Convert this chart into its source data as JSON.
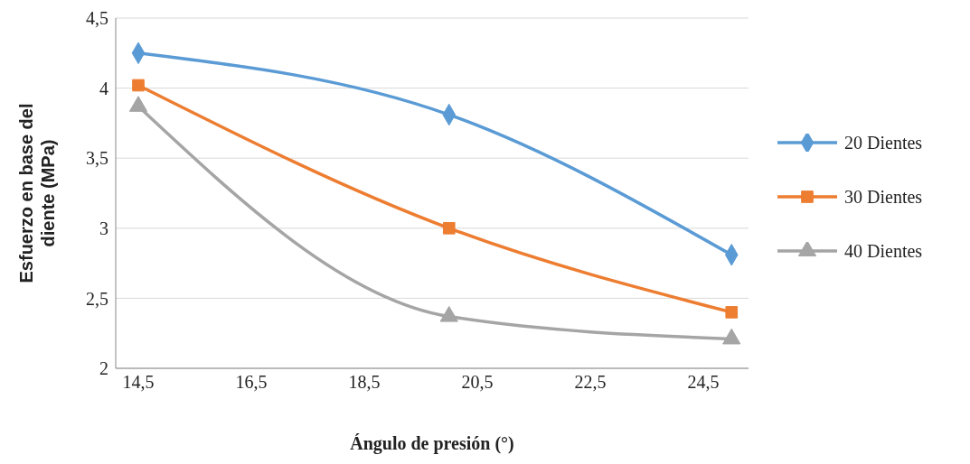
{
  "chart_data": {
    "type": "line",
    "xlabel": "Ángulo de presión (°)",
    "ylabel": "Esfuerzo en base del diente (MPa)",
    "x": [
      14.5,
      20,
      25
    ],
    "series": [
      {
        "name": "20 Dientes",
        "color": "#5b9bd5",
        "values": [
          4.25,
          3.81,
          2.81
        ],
        "marker": "diamond"
      },
      {
        "name": "30 Dientes",
        "color": "#ed7d31",
        "values": [
          4.02,
          3.0,
          2.4
        ],
        "marker": "square"
      },
      {
        "name": "40 Dientes",
        "color": "#a5a5a5",
        "values": [
          3.87,
          2.37,
          2.21
        ],
        "marker": "triangle"
      }
    ],
    "xlim": [
      14.1,
      25.3
    ],
    "xticks": [
      {
        "value": 14.5,
        "label": "14,5"
      },
      {
        "value": 16.5,
        "label": "16,5"
      },
      {
        "value": 18.5,
        "label": "18,5"
      },
      {
        "value": 20.5,
        "label": "20,5"
      },
      {
        "value": 22.5,
        "label": "22,5"
      },
      {
        "value": 24.5,
        "label": "24,5"
      }
    ],
    "ylim": [
      2,
      4.5
    ],
    "yticks": [
      2,
      {
        "value": 2.5,
        "label": "2,5"
      },
      3,
      {
        "value": 3.5,
        "label": "3,5"
      },
      4,
      {
        "value": 4.5,
        "label": "4,5"
      }
    ],
    "grid": "y",
    "legend": "right",
    "line_style": "solid"
  }
}
